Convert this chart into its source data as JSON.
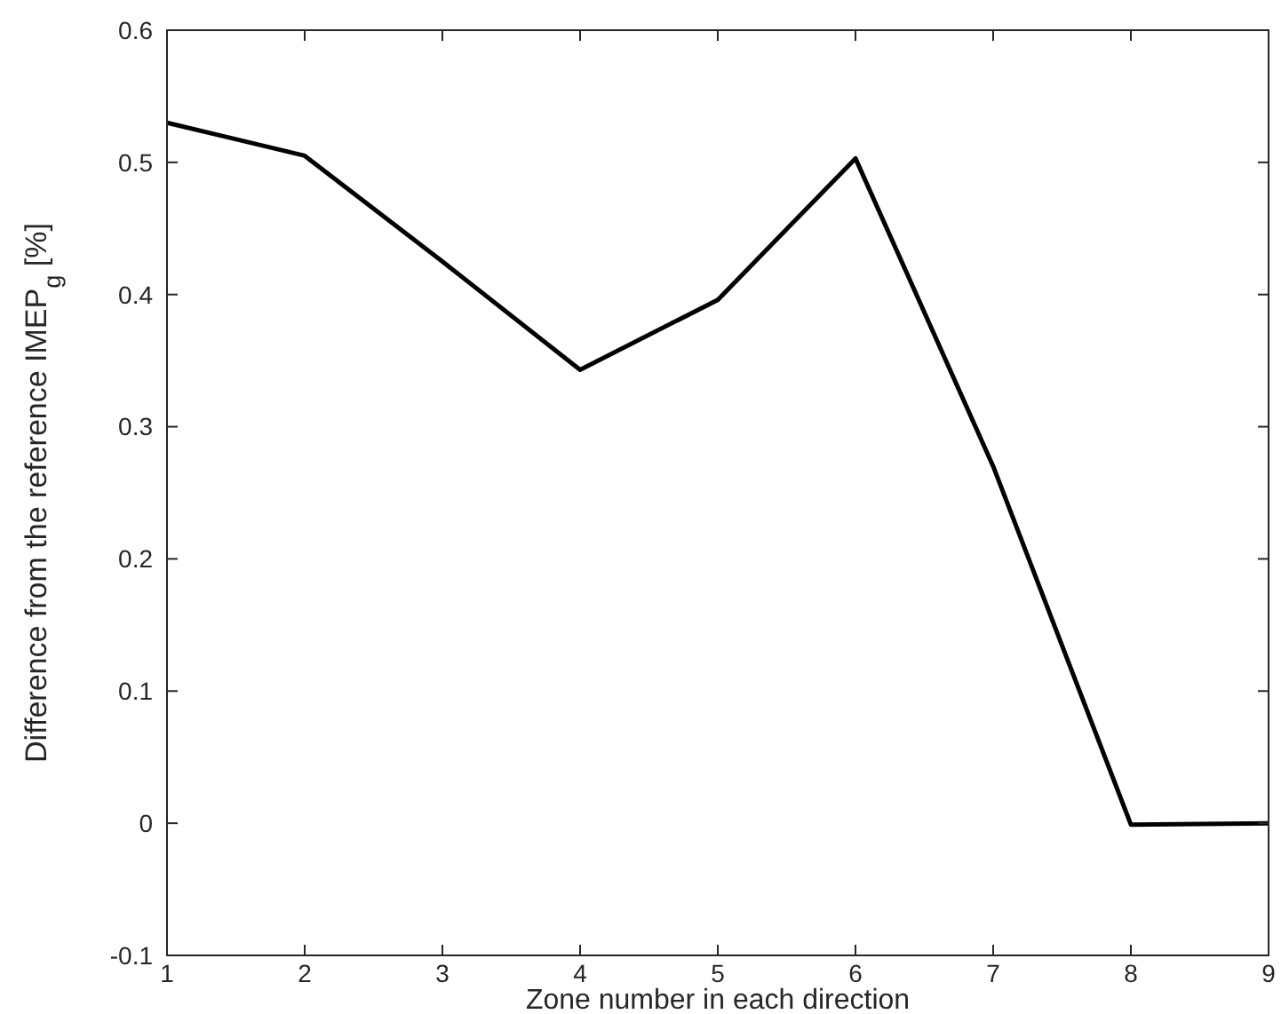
{
  "chart_data": {
    "type": "line",
    "xlabel": "Zone number in each direction",
    "ylabel": "Difference from the reference IMEP$_{g}$ [%]",
    "x": [
      1,
      2,
      3,
      4,
      5,
      6,
      7,
      8,
      9
    ],
    "series": [
      {
        "color": "#000000",
        "values": [
          0.53,
          0.505,
          0.425,
          0.343,
          0.396,
          0.503,
          0.27,
          -0.001,
          0
        ]
      }
    ],
    "xlim": [
      1,
      9
    ],
    "xticks": [
      1,
      2,
      3,
      4,
      5,
      6,
      7,
      8,
      9
    ],
    "ylim": [
      -0.1,
      0.6
    ],
    "yticks": [
      -0.1,
      0,
      0.1,
      0.2,
      0.3,
      0.4,
      0.5,
      0.6
    ],
    "grid": false,
    "marker": "none",
    "line_style": "solid"
  }
}
